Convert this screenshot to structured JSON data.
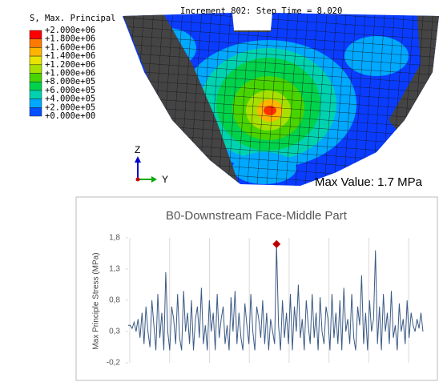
{
  "fe_view": {
    "header": "Increment    802: Step Time =    8.020",
    "legend_title": "S, Max. Principal",
    "legend_labels": [
      "+2.000e+06",
      "+1.800e+06",
      "+1.600e+06",
      "+1.400e+06",
      "+1.200e+06",
      "+1.000e+06",
      "+8.000e+05",
      "+6.000e+05",
      "+4.000e+05",
      "+2.000e+05",
      "+0.000e+00"
    ],
    "legend_colors": [
      "#ff0000",
      "#ff7a00",
      "#ffb400",
      "#e8e400",
      "#a6e000",
      "#48d400",
      "#00d24c",
      "#00d2b0",
      "#00a8ff",
      "#0050ff"
    ],
    "axis_z": "Z",
    "axis_y": "Y",
    "annotation": "Max Value: 1.7 MPa"
  },
  "chart_data": {
    "type": "line",
    "title": "B0-Downstream Face-Middle Part",
    "y_label": "Max Principle Stress (MPa)",
    "ylim": [
      -0.2,
      1.8
    ],
    "yticks": [
      {
        "value": 1.8,
        "label": "1,8"
      },
      {
        "value": 1.3,
        "label": "1,3"
      },
      {
        "value": 0.8,
        "label": "0,8"
      },
      {
        "value": 0.3,
        "label": "0,3"
      },
      {
        "value": -0.2,
        "label": "-0,2"
      }
    ],
    "color": "#3b5a85",
    "max_marker_color": "#c00000",
    "values": [
      0.4,
      0.4,
      0.35,
      0.45,
      0.3,
      0.5,
      0.2,
      0.6,
      0.1,
      0.7,
      0.3,
      0.05,
      0.8,
      0.4,
      0.0,
      0.9,
      0.2,
      0.6,
      0.0,
      1.25,
      0.3,
      0.0,
      0.7,
      0.5,
      0.1,
      0.9,
      0.2,
      0.0,
      0.95,
      0.3,
      0.6,
      0.1,
      0.8,
      0.0,
      0.5,
      0.7,
      0.2,
      1.0,
      0.1,
      0.4,
      0.0,
      0.8,
      0.3,
      0.6,
      0.0,
      0.9,
      0.2,
      0.5,
      0.7,
      0.1,
      0.4,
      0.0,
      0.85,
      0.3,
      0.95,
      0.1,
      0.6,
      0.2,
      0.0,
      0.75,
      0.4,
      0.1,
      0.9,
      0.3,
      0.0,
      0.7,
      0.5,
      0.2,
      0.8,
      0.1,
      0.6,
      0.0,
      0.5,
      0.3,
      0.1,
      1.7,
      0.4,
      0.0,
      0.8,
      0.2,
      0.6,
      0.1,
      0.9,
      0.0,
      0.7,
      0.3,
      1.05,
      0.2,
      0.5,
      0.0,
      0.8,
      0.4,
      0.1,
      0.9,
      0.2,
      0.6,
      0.0,
      0.85,
      0.3,
      0.1,
      0.7,
      0.5,
      0.0,
      0.9,
      0.2,
      0.6,
      0.1,
      0.8,
      0.0,
      1.0,
      0.3,
      0.5,
      0.1,
      0.9,
      0.2,
      0.0,
      0.7,
      0.4,
      1.2,
      0.1,
      0.6,
      0.0,
      0.8,
      0.3,
      0.5,
      1.6,
      0.1,
      0.7,
      0.0,
      0.9,
      0.3,
      0.6,
      0.1,
      0.95,
      0.2,
      0.4,
      0.0,
      0.75,
      0.3,
      0.5,
      0.1,
      0.8,
      0.2,
      0.6,
      0.4,
      0.3,
      0.5,
      0.35,
      0.6,
      0.3
    ]
  }
}
